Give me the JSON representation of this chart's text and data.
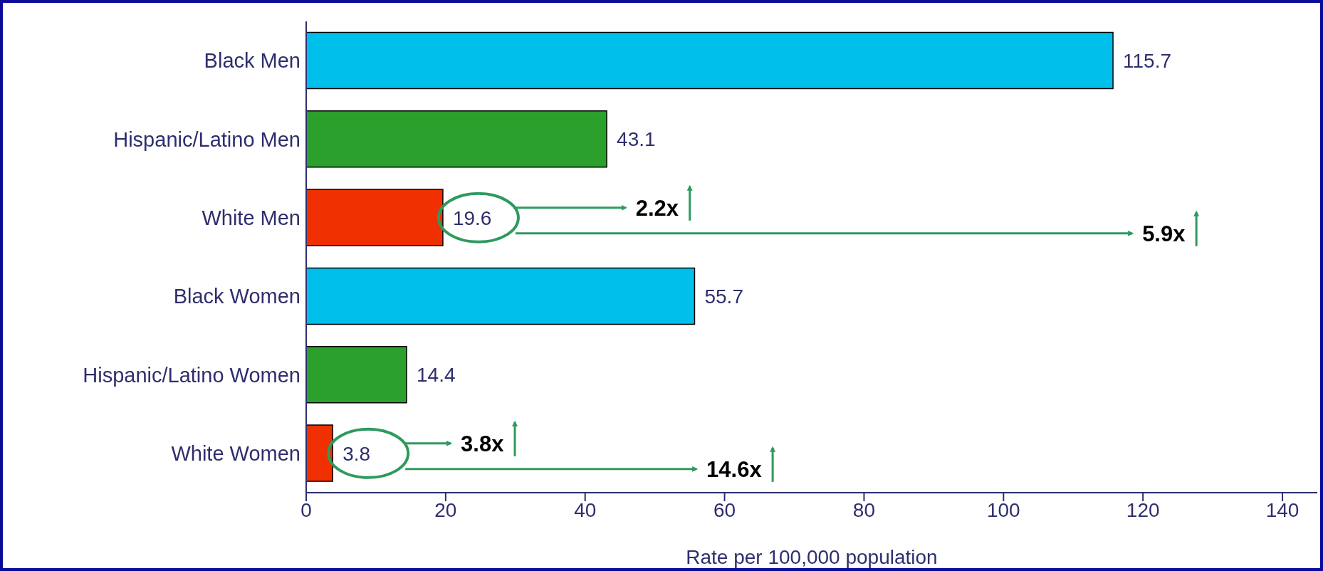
{
  "chart_data": {
    "type": "bar",
    "orientation": "horizontal",
    "categories": [
      "Black Men",
      "Hispanic/Latino Men",
      "White Men",
      "Black Women",
      "Hispanic/Latino Women",
      "White Women"
    ],
    "values": [
      115.7,
      43.1,
      19.6,
      55.7,
      14.4,
      3.8
    ],
    "colors": [
      "#00bfeb",
      "#2ca02c",
      "#f03000",
      "#00bfeb",
      "#2ca02c",
      "#f03000"
    ],
    "xlim": [
      0,
      145
    ],
    "xticks": [
      0,
      20,
      40,
      60,
      80,
      100,
      120,
      140
    ],
    "xlabel": "Rate per 100,000 population",
    "data_labels": true,
    "annotations": [
      "2.2x",
      "5.9x",
      "3.8x",
      "14.6x"
    ]
  }
}
